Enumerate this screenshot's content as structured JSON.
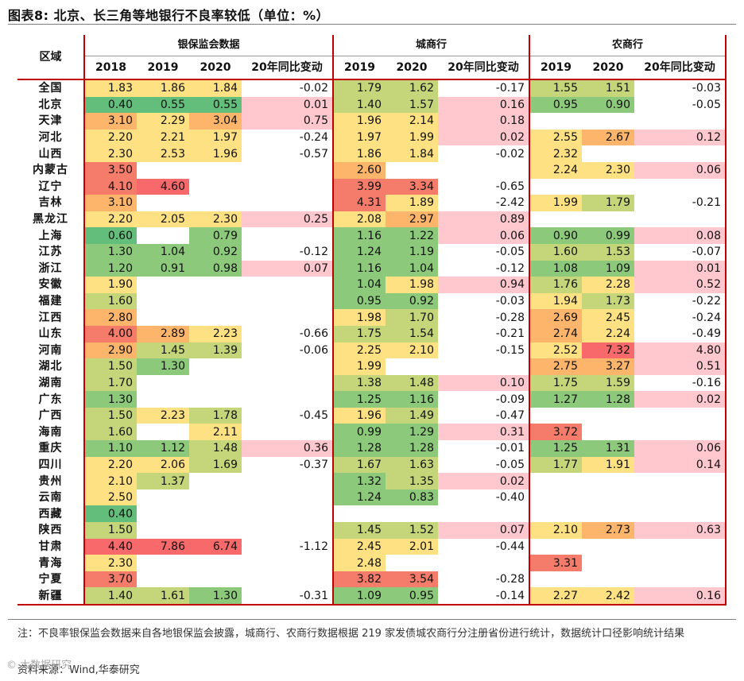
{
  "title": "图表8:  北京、长三角等地银行不良率较低（单位：%）",
  "header": {
    "region": "区域",
    "groups": [
      "银保监会数据",
      "城商行",
      "农商行"
    ],
    "sub": [
      [
        "2018",
        "2019",
        "2020",
        "20年同比变动"
      ],
      [
        "2019",
        "2020",
        "20年同比变动"
      ],
      [
        "2019",
        "2020",
        "20年同比变动"
      ]
    ]
  },
  "colors": {
    "dark_green": "#63be7b",
    "green": "#8cc97a",
    "yellowgreen": "#c5d67a",
    "yellow": "#fde182",
    "orange": "#fdb56b",
    "redorange": "#f57b6a",
    "red": "#f8696b",
    "pink": "#ffc7ce",
    "border_red": "#c00000"
  },
  "rows": [
    {
      "region": "全国",
      "cbirc": [
        "1.83",
        "1.86",
        "1.84",
        "-0.02"
      ],
      "city": [
        "1.79",
        "1.62",
        "-0.17"
      ],
      "rural": [
        "1.55",
        "1.51",
        "-0.03"
      ]
    },
    {
      "region": "北京",
      "cbirc": [
        "0.40",
        "0.55",
        "0.55",
        "0.01"
      ],
      "city": [
        "1.40",
        "1.57",
        "0.16"
      ],
      "rural": [
        "0.95",
        "0.90",
        "-0.05"
      ]
    },
    {
      "region": "天津",
      "cbirc": [
        "3.10",
        "2.29",
        "3.04",
        "0.75"
      ],
      "city": [
        "1.96",
        "2.14",
        "0.18"
      ],
      "rural": [
        "",
        "",
        ""
      ]
    },
    {
      "region": "河北",
      "cbirc": [
        "2.20",
        "2.21",
        "1.97",
        "-0.24"
      ],
      "city": [
        "1.97",
        "1.99",
        "0.02"
      ],
      "rural": [
        "2.55",
        "2.67",
        "0.12"
      ]
    },
    {
      "region": "山西",
      "cbirc": [
        "2.30",
        "2.53",
        "1.96",
        "-0.57"
      ],
      "city": [
        "1.86",
        "1.84",
        "-0.02"
      ],
      "rural": [
        "2.32",
        "",
        ""
      ]
    },
    {
      "region": "内蒙古",
      "cbirc": [
        "3.50",
        "",
        "",
        ""
      ],
      "city": [
        "2.60",
        "",
        ""
      ],
      "rural": [
        "2.24",
        "2.30",
        "0.06"
      ]
    },
    {
      "region": "辽宁",
      "cbirc": [
        "4.10",
        "4.60",
        "",
        ""
      ],
      "city": [
        "3.99",
        "3.34",
        "-0.65"
      ],
      "rural": [
        "",
        "",
        ""
      ]
    },
    {
      "region": "吉林",
      "cbirc": [
        "3.10",
        "",
        "",
        ""
      ],
      "city": [
        "4.31",
        "1.89",
        "-2.42"
      ],
      "rural": [
        "1.99",
        "1.79",
        "-0.21"
      ]
    },
    {
      "region": "黑龙江",
      "cbirc": [
        "2.20",
        "2.05",
        "2.30",
        "0.25"
      ],
      "city": [
        "2.08",
        "2.97",
        "0.89"
      ],
      "rural": [
        "",
        "",
        ""
      ]
    },
    {
      "region": "上海",
      "cbirc": [
        "0.60",
        "",
        "0.79",
        ""
      ],
      "city": [
        "1.16",
        "1.22",
        "0.06"
      ],
      "rural": [
        "0.90",
        "0.99",
        "0.08"
      ]
    },
    {
      "region": "江苏",
      "cbirc": [
        "1.30",
        "1.04",
        "0.92",
        "-0.12"
      ],
      "city": [
        "1.24",
        "1.19",
        "-0.05"
      ],
      "rural": [
        "1.60",
        "1.53",
        "-0.07"
      ]
    },
    {
      "region": "浙江",
      "cbirc": [
        "1.20",
        "0.91",
        "0.98",
        "0.07"
      ],
      "city": [
        "1.16",
        "1.04",
        "-0.12"
      ],
      "rural": [
        "1.08",
        "1.09",
        "0.01"
      ]
    },
    {
      "region": "安徽",
      "cbirc": [
        "1.90",
        "",
        "",
        ""
      ],
      "city": [
        "1.04",
        "1.98",
        "0.94"
      ],
      "rural": [
        "1.76",
        "2.28",
        "0.52"
      ]
    },
    {
      "region": "福建",
      "cbirc": [
        "1.60",
        "",
        "",
        ""
      ],
      "city": [
        "0.95",
        "0.92",
        "-0.03"
      ],
      "rural": [
        "1.94",
        "1.73",
        "-0.22"
      ]
    },
    {
      "region": "江西",
      "cbirc": [
        "2.80",
        "",
        "",
        ""
      ],
      "city": [
        "1.98",
        "1.70",
        "-0.28"
      ],
      "rural": [
        "2.69",
        "2.45",
        "-0.24"
      ]
    },
    {
      "region": "山东",
      "cbirc": [
        "4.00",
        "2.89",
        "2.23",
        "-0.66"
      ],
      "city": [
        "1.75",
        "1.54",
        "-0.21"
      ],
      "rural": [
        "2.74",
        "2.24",
        "-0.49"
      ]
    },
    {
      "region": "河南",
      "cbirc": [
        "2.90",
        "1.45",
        "1.39",
        "-0.06"
      ],
      "city": [
        "2.25",
        "2.10",
        "-0.15"
      ],
      "rural": [
        "2.52",
        "7.32",
        "4.80"
      ]
    },
    {
      "region": "湖北",
      "cbirc": [
        "1.50",
        "1.30",
        "",
        ""
      ],
      "city": [
        "1.99",
        "",
        ""
      ],
      "rural": [
        "2.75",
        "3.27",
        "0.51"
      ]
    },
    {
      "region": "湖南",
      "cbirc": [
        "1.70",
        "",
        "",
        ""
      ],
      "city": [
        "1.38",
        "1.48",
        "0.10"
      ],
      "rural": [
        "1.75",
        "1.59",
        "-0.16"
      ]
    },
    {
      "region": "广东",
      "cbirc": [
        "1.30",
        "",
        "",
        ""
      ],
      "city": [
        "1.25",
        "1.16",
        "-0.09"
      ],
      "rural": [
        "1.27",
        "1.28",
        "0.02"
      ]
    },
    {
      "region": "广西",
      "cbirc": [
        "1.50",
        "2.23",
        "1.78",
        "-0.45"
      ],
      "city": [
        "1.96",
        "1.49",
        "-0.47"
      ],
      "rural": [
        "",
        "",
        ""
      ]
    },
    {
      "region": "海南",
      "cbirc": [
        "1.60",
        "",
        "2.11",
        ""
      ],
      "city": [
        "0.99",
        "1.29",
        "0.31"
      ],
      "rural": [
        "3.72",
        "",
        ""
      ]
    },
    {
      "region": "重庆",
      "cbirc": [
        "1.10",
        "1.12",
        "1.48",
        "0.36"
      ],
      "city": [
        "1.28",
        "1.28",
        "-0.01"
      ],
      "rural": [
        "1.25",
        "1.31",
        "0.06"
      ]
    },
    {
      "region": "四川",
      "cbirc": [
        "2.20",
        "2.06",
        "1.69",
        "-0.37"
      ],
      "city": [
        "1.67",
        "1.63",
        "-0.05"
      ],
      "rural": [
        "1.77",
        "1.91",
        "0.14"
      ]
    },
    {
      "region": "贵州",
      "cbirc": [
        "2.10",
        "1.37",
        "",
        ""
      ],
      "city": [
        "1.32",
        "1.35",
        "0.02"
      ],
      "rural": [
        "",
        "",
        ""
      ]
    },
    {
      "region": "云南",
      "cbirc": [
        "2.50",
        "",
        "",
        ""
      ],
      "city": [
        "1.24",
        "0.83",
        "-0.40"
      ],
      "rural": [
        "",
        "",
        ""
      ]
    },
    {
      "region": "西藏",
      "cbirc": [
        "0.40",
        "",
        "",
        ""
      ],
      "city": [
        "",
        "",
        ""
      ],
      "rural": [
        "",
        "",
        ""
      ]
    },
    {
      "region": "陕西",
      "cbirc": [
        "1.50",
        "",
        "",
        ""
      ],
      "city": [
        "1.45",
        "1.52",
        "0.07"
      ],
      "rural": [
        "2.10",
        "2.73",
        "0.63"
      ]
    },
    {
      "region": "甘肃",
      "cbirc": [
        "4.40",
        "7.86",
        "6.74",
        "-1.12"
      ],
      "city": [
        "2.45",
        "2.01",
        "-0.44"
      ],
      "rural": [
        "",
        "",
        ""
      ]
    },
    {
      "region": "青海",
      "cbirc": [
        "2.30",
        "",
        "",
        ""
      ],
      "city": [
        "2.48",
        "",
        ""
      ],
      "rural": [
        "3.31",
        "",
        ""
      ]
    },
    {
      "region": "宁夏",
      "cbirc": [
        "3.70",
        "",
        "",
        ""
      ],
      "city": [
        "3.82",
        "3.54",
        "-0.28"
      ],
      "rural": [
        "",
        "",
        ""
      ]
    },
    {
      "region": "新疆",
      "cbirc": [
        "1.40",
        "1.61",
        "1.30",
        "-0.31"
      ],
      "city": [
        "1.09",
        "0.95",
        "-0.14"
      ],
      "rural": [
        "2.27",
        "2.42",
        "0.16"
      ]
    }
  ],
  "note": "注：不良率银保监会数据来自各地银保监会披露，城商行、农商行数据根据 219 家发债城农商行分注册省份进行统计，数据统计口径影响统计结果",
  "source": "资料来源：Wind,华泰研究",
  "watermark": "© 大数据研究"
}
